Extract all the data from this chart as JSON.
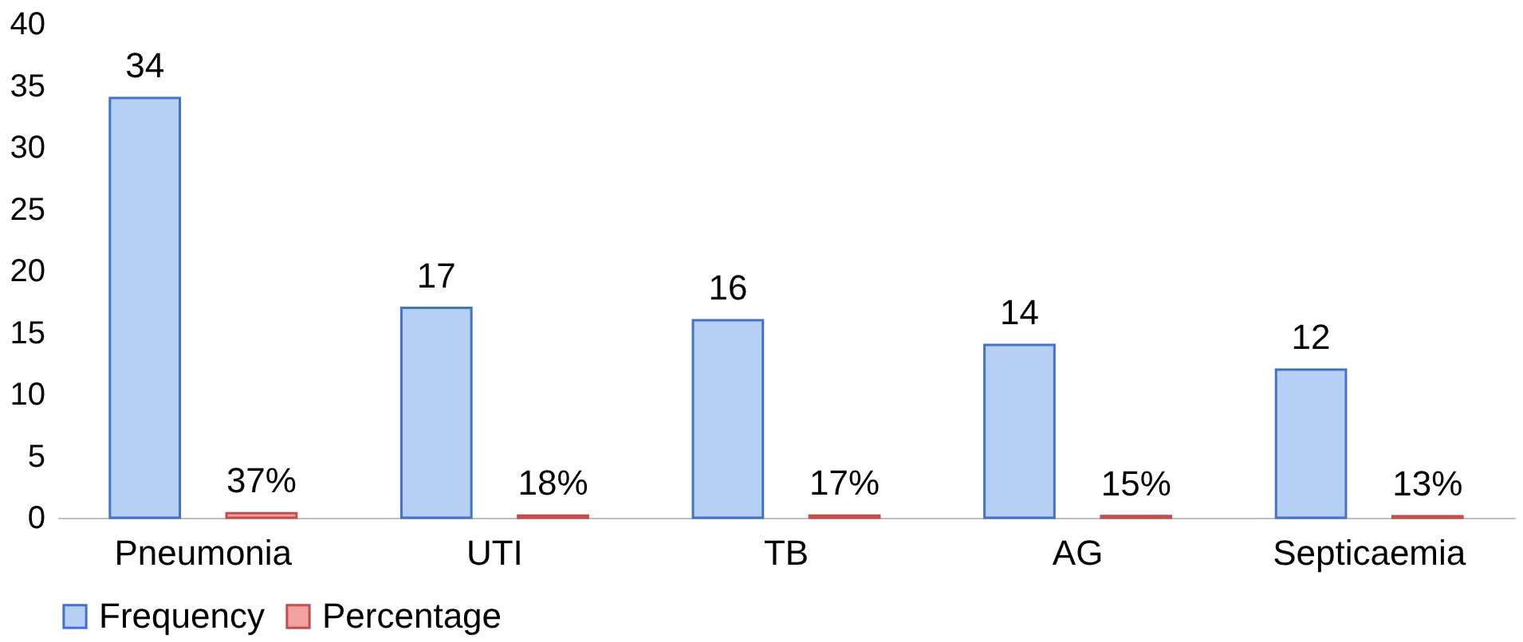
{
  "chart_data": {
    "type": "bar",
    "categories": [
      "Pneumonia",
      "UTI",
      "TB",
      "AG",
      "Septicaemia"
    ],
    "series": [
      {
        "name": "Frequency",
        "color": "#b5cff5",
        "values": [
          34,
          17,
          16,
          14,
          12
        ],
        "value_labels": [
          "34",
          "17",
          "16",
          "14",
          "12"
        ]
      },
      {
        "name": "Percentage",
        "color": "#f2a0a0",
        "values": [
          0.37,
          0.18,
          0.17,
          0.15,
          0.13
        ],
        "value_labels": [
          "37%",
          "18%",
          "17%",
          "15%",
          "13%"
        ]
      }
    ],
    "ylim": [
      0,
      40
    ],
    "yticks": [
      0,
      5,
      10,
      15,
      20,
      25,
      30,
      35,
      40
    ],
    "grid": false,
    "legend": "bottom"
  }
}
